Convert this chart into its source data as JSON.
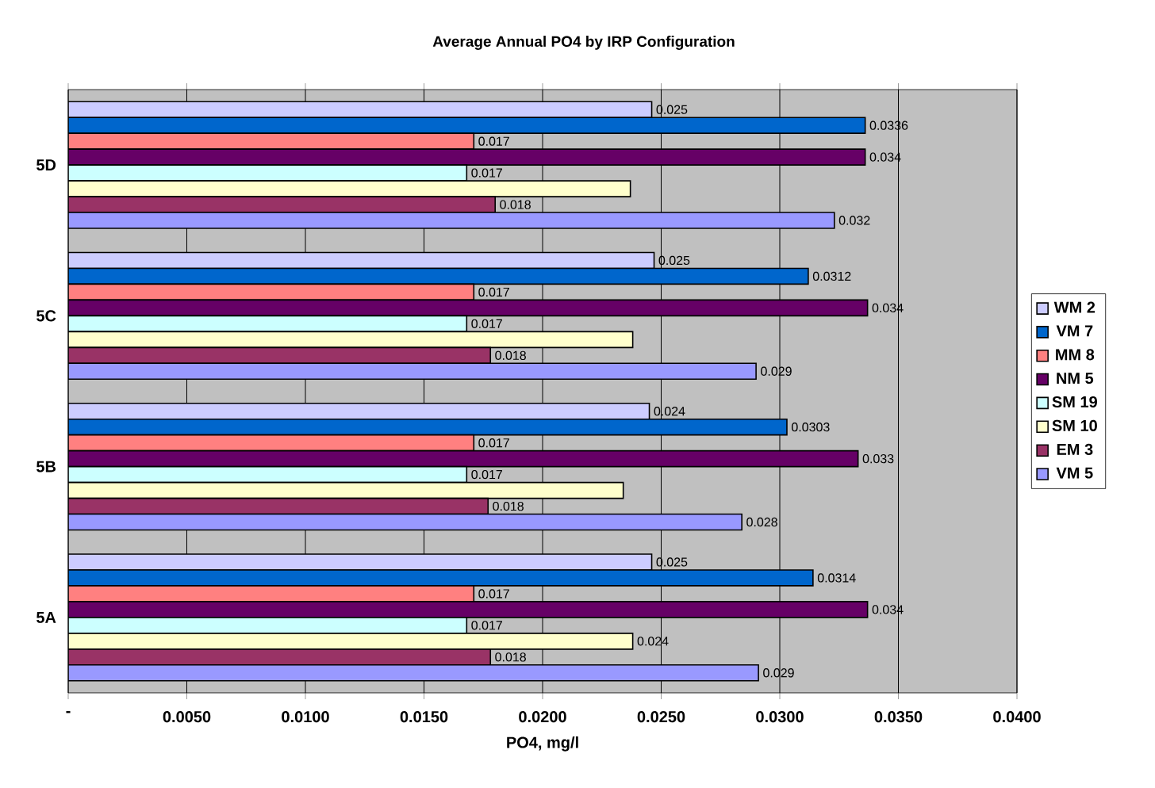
{
  "chart_data": {
    "type": "bar",
    "orientation": "horizontal",
    "title": "Average Annual PO4 by IRP Configuration",
    "xlabel": "PO4, mg/l",
    "categories": [
      "5D",
      "5C",
      "5B",
      "5A"
    ],
    "series": [
      {
        "name": "WM 2",
        "color": "#ccccff",
        "values": [
          0.0246,
          0.0247,
          0.0245,
          0.0246
        ],
        "value_labels": [
          "0.025",
          "0.025",
          "0.024",
          "0.025"
        ]
      },
      {
        "name": "VM 7",
        "color": "#0066cc",
        "values": [
          0.0336,
          0.0312,
          0.0303,
          0.0314
        ],
        "value_labels": [
          "0.0336",
          "0.0312",
          "0.0303",
          "0.0314"
        ]
      },
      {
        "name": "MM 8",
        "color": "#ff8080",
        "values": [
          0.0171,
          0.0171,
          0.0171,
          0.0171
        ],
        "value_labels": [
          "0.017",
          "0.017",
          "0.017",
          "0.017"
        ]
      },
      {
        "name": "NM 5",
        "color": "#660066",
        "values": [
          0.0336,
          0.0337,
          0.0333,
          0.0337
        ],
        "value_labels": [
          "0.034",
          "0.034",
          "0.033",
          "0.034"
        ]
      },
      {
        "name": "SM 19",
        "color": "#ccffff",
        "values": [
          0.0168,
          0.0168,
          0.0168,
          0.0168
        ],
        "value_labels": [
          "0.017",
          "0.017",
          "0.017",
          "0.017"
        ]
      },
      {
        "name": "SM 10",
        "color": "#ffffcc",
        "values": [
          0.0237,
          0.0238,
          0.0234,
          0.0238
        ],
        "value_labels": [
          null,
          null,
          null,
          "0.024"
        ]
      },
      {
        "name": "EM 3",
        "color": "#993366",
        "values": [
          0.018,
          0.0178,
          0.0177,
          0.0178
        ],
        "value_labels": [
          "0.018",
          "0.018",
          "0.018",
          "0.018"
        ]
      },
      {
        "name": "VM 5",
        "color": "#9999ff",
        "values": [
          0.0323,
          0.029,
          0.0284,
          0.0291
        ],
        "value_labels": [
          "0.032",
          "0.029",
          "0.028",
          "0.029"
        ]
      }
    ],
    "xlim": [
      0,
      0.04
    ],
    "xticks": [
      {
        "value": 0,
        "label": "-"
      },
      {
        "value": 0.005,
        "label": "0.0050"
      },
      {
        "value": 0.01,
        "label": "0.0100"
      },
      {
        "value": 0.015,
        "label": "0.0150"
      },
      {
        "value": 0.02,
        "label": "0.0200"
      },
      {
        "value": 0.025,
        "label": "0.0250"
      },
      {
        "value": 0.03,
        "label": "0.0300"
      },
      {
        "value": 0.035,
        "label": "0.0350"
      },
      {
        "value": 0.04,
        "label": "0.0400"
      }
    ],
    "grid": "x",
    "legend": "right"
  }
}
